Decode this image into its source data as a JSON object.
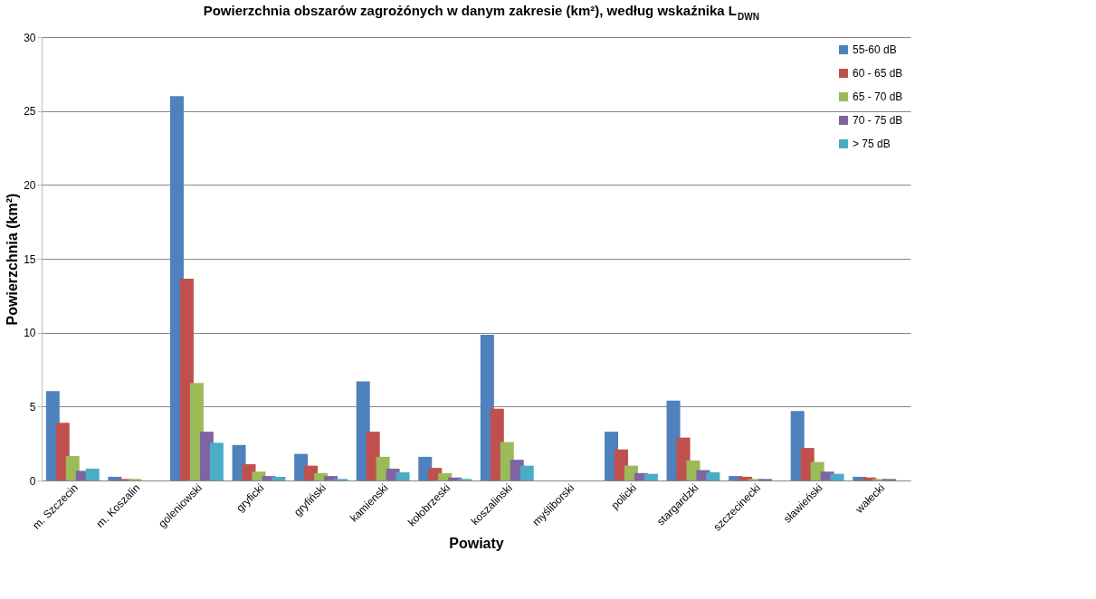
{
  "chart_data": {
    "type": "bar",
    "title": "Powierzchnia obszarów zagrożónych w danym zakresie (km²), według wskaźnika L$_{DWN}$",
    "xlabel": "Powiaty",
    "ylabel": "Powierzchnia (km²)",
    "categories": [
      "m. Szczecin",
      "m. Koszalin",
      "goleniowski",
      "gryficki",
      "gryfiński",
      "kamienski",
      "kołobrzeski",
      "koszalinski",
      "myśliborski",
      "policki",
      "stargardzki",
      "szczecinecki",
      "sławieński",
      "wałecki"
    ],
    "series": [
      {
        "name": "55-60 dB",
        "color": "#4f81bd",
        "values": [
          6.05,
          0.25,
          26.0,
          2.4,
          1.8,
          6.7,
          1.6,
          9.85,
          0,
          3.3,
          5.4,
          0.3,
          4.7,
          0.25
        ]
      },
      {
        "name": "60 - 65 dB",
        "color": "#c0504d",
        "values": [
          3.9,
          0.1,
          13.65,
          1.1,
          1.0,
          3.3,
          0.85,
          4.85,
          0,
          2.1,
          2.9,
          0.25,
          2.2,
          0.2
        ]
      },
      {
        "name": "65 - 70 dB",
        "color": "#9bbb59",
        "values": [
          1.65,
          0.1,
          6.6,
          0.6,
          0.5,
          1.6,
          0.5,
          2.6,
          0,
          1.0,
          1.35,
          0.1,
          1.25,
          0.1
        ]
      },
      {
        "name": "70 - 75 dB",
        "color": "#8064a2",
        "values": [
          0.65,
          0,
          3.3,
          0.3,
          0.3,
          0.8,
          0.2,
          1.4,
          0,
          0.5,
          0.7,
          0.1,
          0.6,
          0.1
        ]
      },
      {
        "name": "> 75 dB",
        "color": "#4bacc6",
        "values": [
          0.8,
          0,
          2.55,
          0.25,
          0.1,
          0.55,
          0.1,
          1.0,
          0,
          0.45,
          0.55,
          0,
          0.45,
          0
        ]
      }
    ],
    "ylim": [
      0,
      30
    ],
    "yticks": [
      0,
      5,
      10,
      15,
      20,
      25,
      30
    ],
    "grid": "y",
    "legend": "top right"
  }
}
